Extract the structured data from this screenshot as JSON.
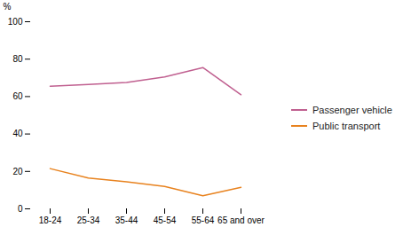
{
  "chart_data": {
    "type": "line",
    "categories": [
      "18-24",
      "25-34",
      "35-44",
      "45-54",
      "55-64",
      "65 and over"
    ],
    "series": [
      {
        "name": "Passenger vehicle",
        "color": "#C06090",
        "values": [
          65.5,
          66.5,
          67.5,
          70.5,
          75.5,
          61.0
        ]
      },
      {
        "name": "Public transport",
        "color": "#E8821E",
        "values": [
          21.5,
          16.5,
          14.5,
          12.0,
          7.0,
          11.5
        ]
      }
    ],
    "ylabel": "%",
    "ylim": [
      0,
      100
    ],
    "yticks": [
      0,
      20,
      40,
      60,
      80,
      100
    ],
    "grid": false,
    "legend": "right"
  }
}
